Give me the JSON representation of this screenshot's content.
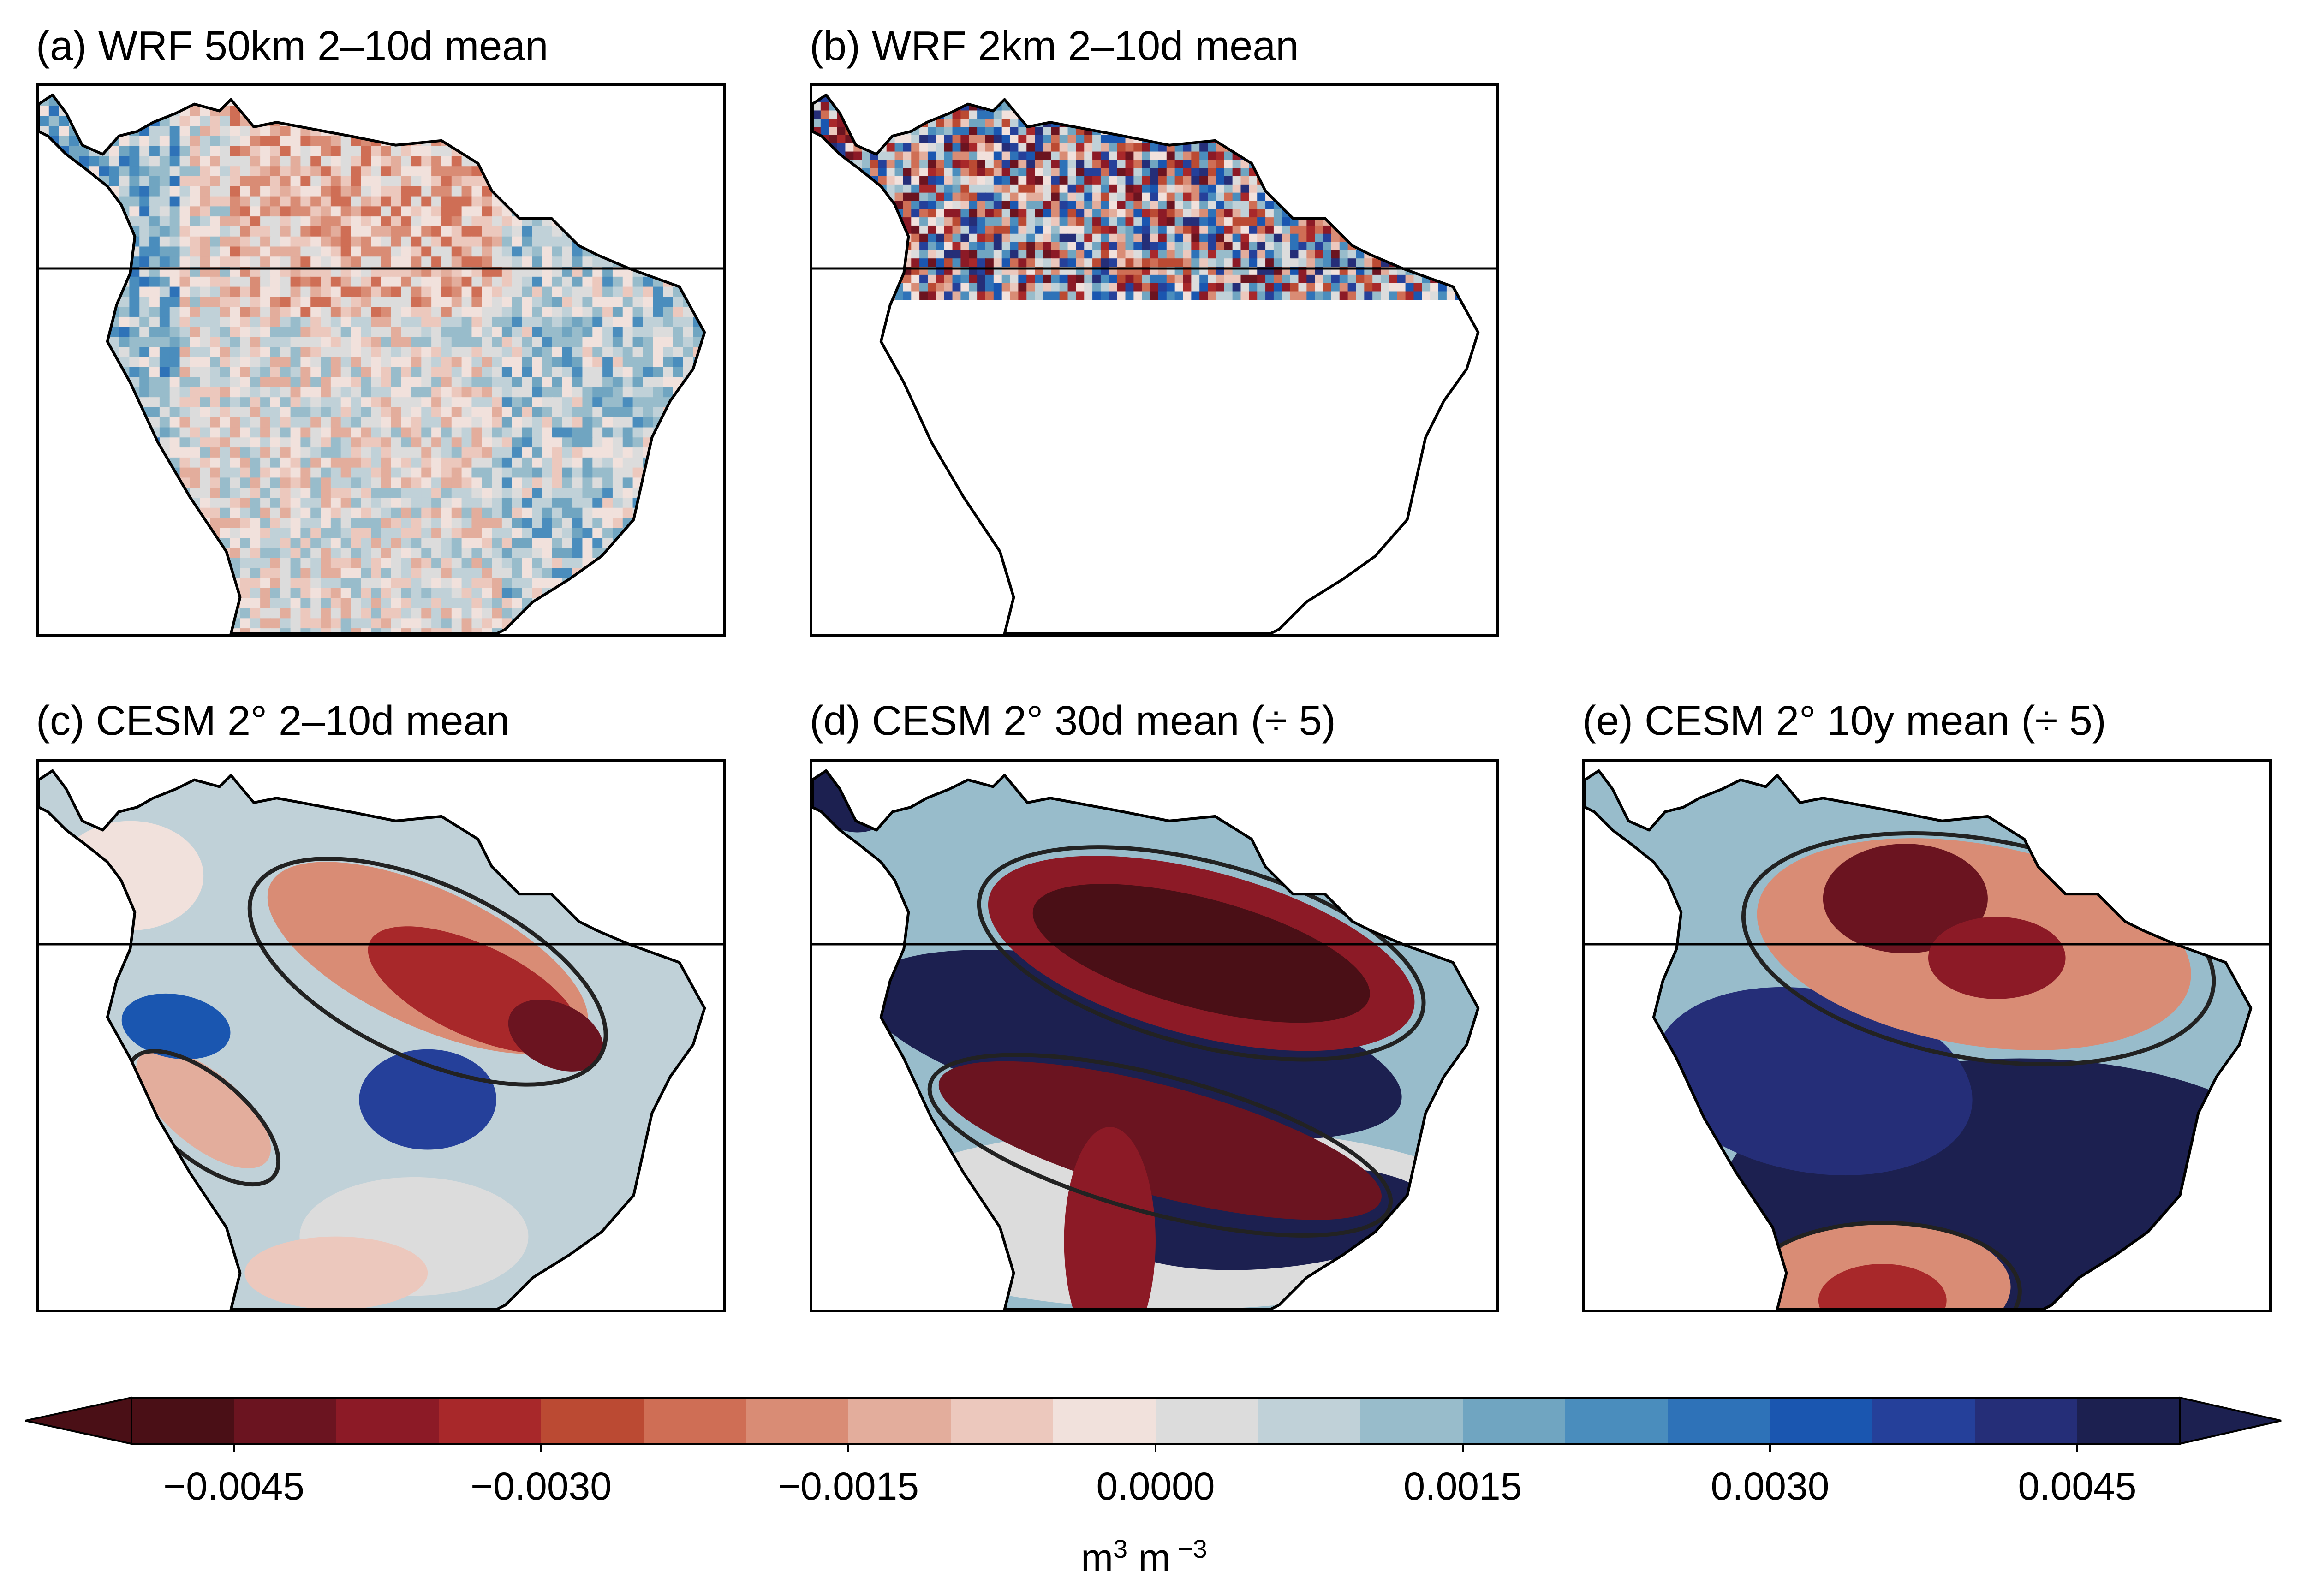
{
  "panels": [
    {
      "id": "a",
      "title": "(a) WRF 50km 2–10d mean",
      "pattern": "noisy",
      "coverage": "full"
    },
    {
      "id": "b",
      "title": "(b) WRF 2km 2–10d mean",
      "pattern": "noisy-strong",
      "coverage": "north-strip"
    },
    {
      "id": "c",
      "title": "(c) CESM 2° 2–10d mean",
      "pattern": "smooth",
      "coverage": "full"
    },
    {
      "id": "d",
      "title": "(d) CESM 2° 30d mean (÷ 5)",
      "pattern": "smooth-strong",
      "coverage": "full"
    },
    {
      "id": "e",
      "title": "(e) CESM 2° 10y mean (÷ 5)",
      "pattern": "smooth-dipole",
      "coverage": "full"
    }
  ],
  "colorbar": {
    "levels": 20,
    "extend": "both",
    "colors": [
      "#4a0f16",
      "#6b1420",
      "#8c1a26",
      "#a8282a",
      "#bb4a33",
      "#cf6e55",
      "#d98c75",
      "#e3ad9c",
      "#ecc8bd",
      "#f1e1dc",
      "#dcdcdc",
      "#c0d1d8",
      "#98bccb",
      "#70a5c1",
      "#4a8dbd",
      "#2e72b8",
      "#1a56b0",
      "#25409a",
      "#252e78",
      "#1c2050"
    ],
    "tick_labels": [
      "−0.0045",
      "−0.0030",
      "−0.0015",
      "0.0000",
      "0.0015",
      "0.0030",
      "0.0045"
    ],
    "unit": {
      "base1": "m",
      "exp1": "3",
      "base2": " m",
      "exp2": " −3"
    }
  }
}
